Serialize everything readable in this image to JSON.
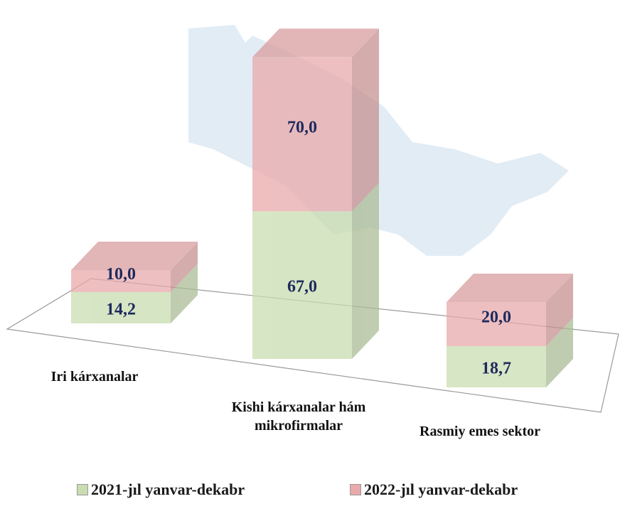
{
  "chart_data": {
    "type": "bar3d_stacked",
    "categories": [
      "Iri kárxanalar",
      "Kishi kárxanalar hám mikrofirmalar",
      "Rasmiy emes sektor"
    ],
    "series": [
      {
        "name": "2021-jıl yanvar-dekabr",
        "color": "#c9ddb0",
        "values": [
          14.2,
          67.0,
          18.7
        ],
        "value_labels": [
          "14,2",
          "67,0",
          "18,7"
        ]
      },
      {
        "name": "2022-jıl yanvar-dekabr",
        "color": "#e9aaab",
        "values": [
          10.0,
          70.0,
          20.0
        ],
        "value_labels": [
          "10,0",
          "70,0",
          "20,0"
        ]
      }
    ]
  }
}
